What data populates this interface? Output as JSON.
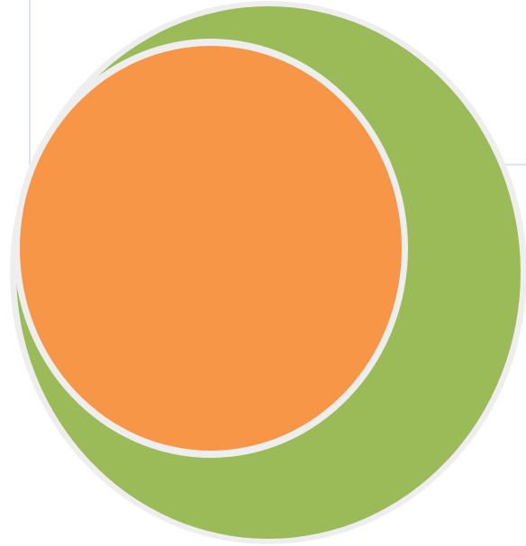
{
  "diagram": {
    "type": "nested-circles",
    "colors": {
      "outer_fill": "#9bbb59",
      "inner_fill": "#f79646",
      "outline": "#eeeeee",
      "guide_lines": "#b8cce4",
      "background": "#ffffff"
    },
    "circles": [
      {
        "name": "outer",
        "color_key": "outer_fill"
      },
      {
        "name": "inner",
        "color_key": "inner_fill"
      }
    ]
  }
}
